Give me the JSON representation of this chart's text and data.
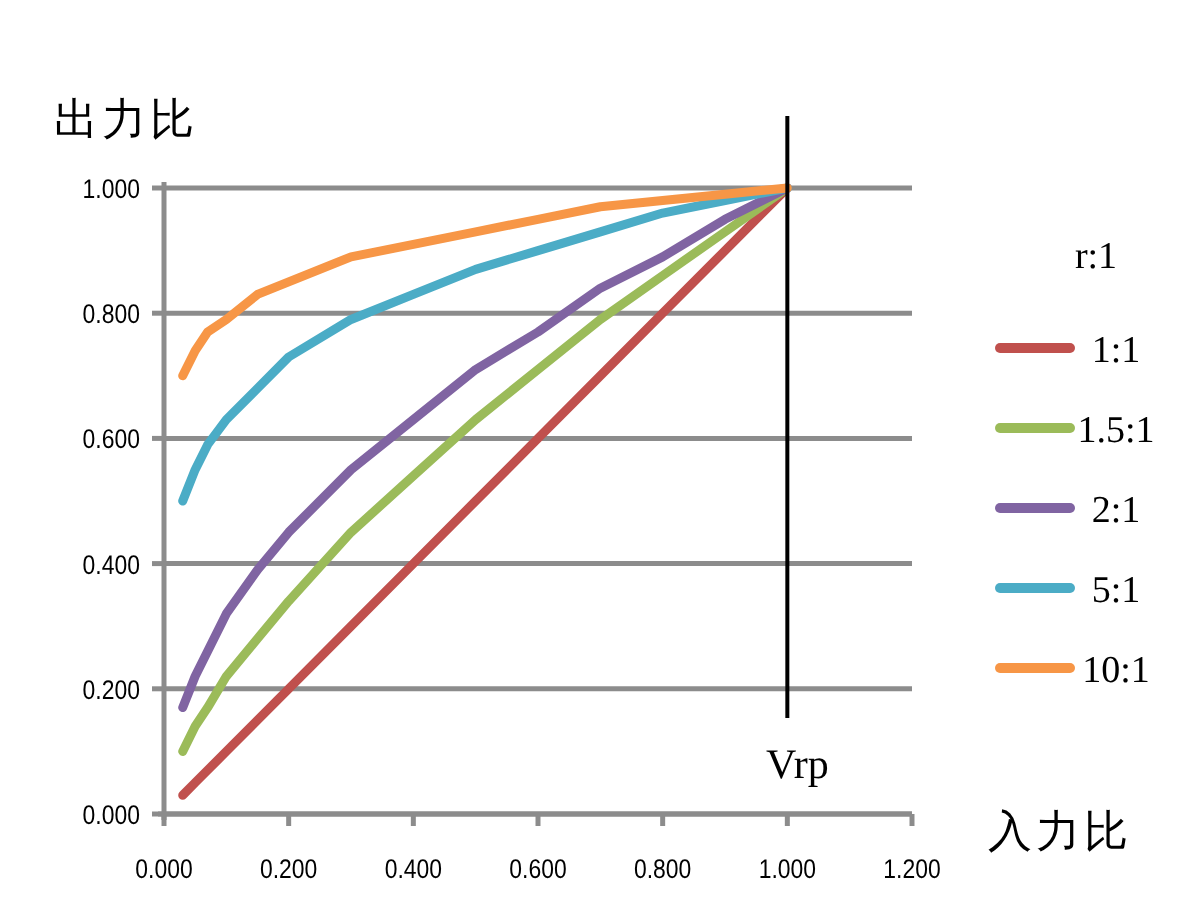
{
  "chart_data": {
    "type": "line",
    "ylabel": "出力比",
    "xlabel": "入力比",
    "legend_title": "r:1",
    "legend": "right",
    "grid": "y",
    "marker": "none",
    "line_style": "solid",
    "x": [
      0.03,
      0.05,
      0.07,
      0.1,
      0.15,
      0.2,
      0.3,
      0.4,
      0.5,
      0.6,
      0.7,
      0.8,
      0.9,
      1.0
    ],
    "xlim": [
      0,
      1.2
    ],
    "ylim": [
      0,
      1
    ],
    "xticks": [
      {
        "value": 0,
        "label": "0.000"
      },
      {
        "value": 0.2,
        "label": "0.200"
      },
      {
        "value": 0.4,
        "label": "0.400"
      },
      {
        "value": 0.6,
        "label": "0.600"
      },
      {
        "value": 0.8,
        "label": "0.800"
      },
      {
        "value": 1.0,
        "label": "1.000"
      },
      {
        "value": 1.2,
        "label": "1.200"
      }
    ],
    "yticks": [
      {
        "value": 0,
        "label": "0.000"
      },
      {
        "value": 0.2,
        "label": "0.200"
      },
      {
        "value": 0.4,
        "label": "0.400"
      },
      {
        "value": 0.6,
        "label": "0.600"
      },
      {
        "value": 0.8,
        "label": "0.800"
      },
      {
        "value": 1.0,
        "label": "1.000"
      }
    ],
    "series": [
      {
        "name": "1:1",
        "color": "#c0504d",
        "values": [
          0.03,
          0.05,
          0.07,
          0.1,
          0.15,
          0.2,
          0.3,
          0.4,
          0.5,
          0.6,
          0.7,
          0.8,
          0.9,
          1.0
        ]
      },
      {
        "name": "1.5:1",
        "color": "#9bbb59",
        "values": [
          0.1,
          0.14,
          0.17,
          0.22,
          0.28,
          0.34,
          0.45,
          0.54,
          0.63,
          0.71,
          0.79,
          0.86,
          0.93,
          1.0
        ]
      },
      {
        "name": "2:1",
        "color": "#8064a2",
        "values": [
          0.17,
          0.22,
          0.26,
          0.32,
          0.39,
          0.45,
          0.55,
          0.63,
          0.71,
          0.77,
          0.84,
          0.89,
          0.95,
          1.0
        ]
      },
      {
        "name": "5:1",
        "color": "#4bacc6",
        "values": [
          0.5,
          0.55,
          0.59,
          0.63,
          0.68,
          0.73,
          0.79,
          0.83,
          0.87,
          0.9,
          0.93,
          0.96,
          0.98,
          1.0
        ]
      },
      {
        "name": "10:1",
        "color": "#f79646",
        "values": [
          0.7,
          0.74,
          0.77,
          0.79,
          0.83,
          0.85,
          0.89,
          0.91,
          0.93,
          0.95,
          0.97,
          0.98,
          0.99,
          1.0
        ]
      }
    ],
    "ref_lines": [
      {
        "axis": "x",
        "value": 1.0,
        "label": "Vrp",
        "color": "#000000",
        "line_style": "solid"
      }
    ]
  }
}
